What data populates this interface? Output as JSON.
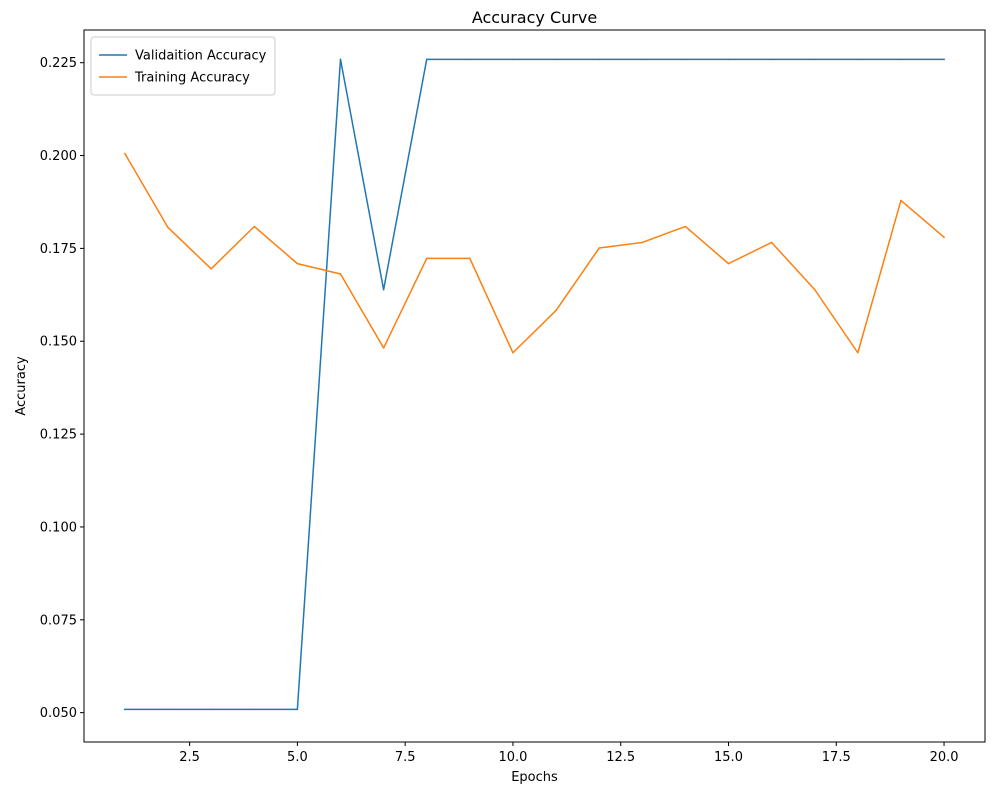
{
  "chart_data": {
    "type": "line",
    "title": "Accuracy Curve",
    "xlabel": "Epochs",
    "ylabel": "Accuracy",
    "xlim": [
      0.05,
      20.95
    ],
    "ylim": [
      0.0421,
      0.2338
    ],
    "xticks": [
      2.5,
      5.0,
      7.5,
      10.0,
      12.5,
      15.0,
      17.5,
      20.0
    ],
    "xtick_labels": [
      "2.5",
      "5.0",
      "7.5",
      "10.0",
      "12.5",
      "15.0",
      "17.5",
      "20.0"
    ],
    "yticks": [
      0.05,
      0.075,
      0.1,
      0.125,
      0.15,
      0.175,
      0.2,
      0.225
    ],
    "ytick_labels": [
      "0.050",
      "0.075",
      "0.100",
      "0.125",
      "0.150",
      "0.175",
      "0.200",
      "0.225"
    ],
    "grid": false,
    "legend_position": "top-left",
    "x": [
      1,
      2,
      3,
      4,
      5,
      6,
      7,
      8,
      9,
      10,
      11,
      12,
      13,
      14,
      15,
      16,
      17,
      18,
      19,
      20
    ],
    "series": [
      {
        "name": "Validaition Accuracy",
        "color": "#1f77b4",
        "values": [
          0.0509,
          0.0509,
          0.0509,
          0.0509,
          0.0509,
          0.2259,
          0.1639,
          0.2259,
          0.2259,
          0.2259,
          0.2259,
          0.2259,
          0.2259,
          0.2259,
          0.2259,
          0.2259,
          0.2259,
          0.2259,
          0.2259,
          0.2259
        ]
      },
      {
        "name": "Training Accuracy",
        "color": "#ff7f0e",
        "values": [
          0.2005,
          0.1806,
          0.1695,
          0.1809,
          0.1709,
          0.1681,
          0.1482,
          0.1723,
          0.1723,
          0.1469,
          0.1583,
          0.1751,
          0.1766,
          0.1809,
          0.1709,
          0.1766,
          0.1639,
          0.1469,
          0.1879,
          0.178
        ]
      }
    ]
  }
}
